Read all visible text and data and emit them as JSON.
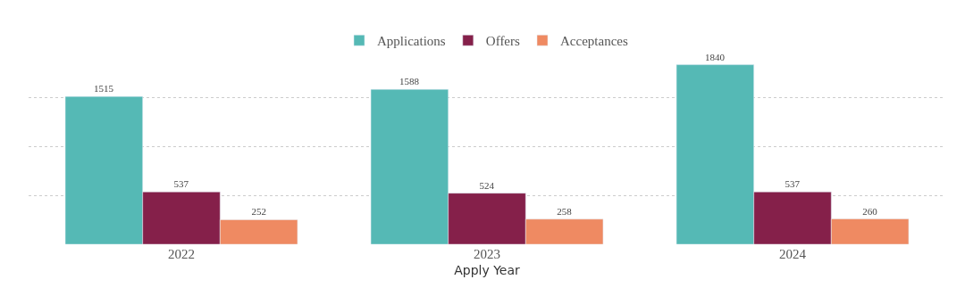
{
  "chart_data": {
    "type": "bar",
    "xlabel": "Apply Year",
    "categories": [
      "2022",
      "2023",
      "2024"
    ],
    "series": [
      {
        "name": "Applications",
        "color": "#55b9b5",
        "values": [
          1515,
          1588,
          1840
        ]
      },
      {
        "name": "Offers",
        "color": "#85204a",
        "values": [
          537,
          524,
          537
        ]
      },
      {
        "name": "Acceptances",
        "color": "#ef8a62",
        "values": [
          252,
          258,
          260
        ]
      }
    ],
    "tick_labels": "x",
    "grid": "y",
    "legend": "top",
    "data_labels": true
  }
}
